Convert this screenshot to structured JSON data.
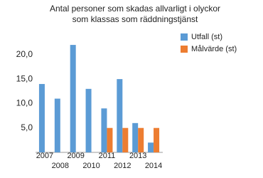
{
  "chart_data": {
    "type": "bar",
    "title": [
      "Antal personer som skadas allvarligt i olyckor",
      "som klassas som räddningstjänst"
    ],
    "categories": [
      "2007",
      "2008",
      "2009",
      "2010",
      "2011",
      "2012",
      "2013",
      "2014"
    ],
    "series": [
      {
        "name": "Utfall (st)",
        "color": "#5b9bd5",
        "values": [
          14,
          11,
          22,
          13,
          9,
          15,
          6,
          2
        ]
      },
      {
        "name": "Målvärde (st)",
        "color": "#ed7d31",
        "values": [
          null,
          null,
          null,
          null,
          5,
          5,
          5,
          5
        ]
      }
    ],
    "ylim": [
      0,
      25
    ],
    "yticks": [
      {
        "value": 5,
        "label": "5,0"
      },
      {
        "value": 10,
        "label": "10,0"
      },
      {
        "value": 15,
        "label": "15,0"
      },
      {
        "value": 20,
        "label": "20,0"
      }
    ],
    "grid": false,
    "legend": "right"
  }
}
